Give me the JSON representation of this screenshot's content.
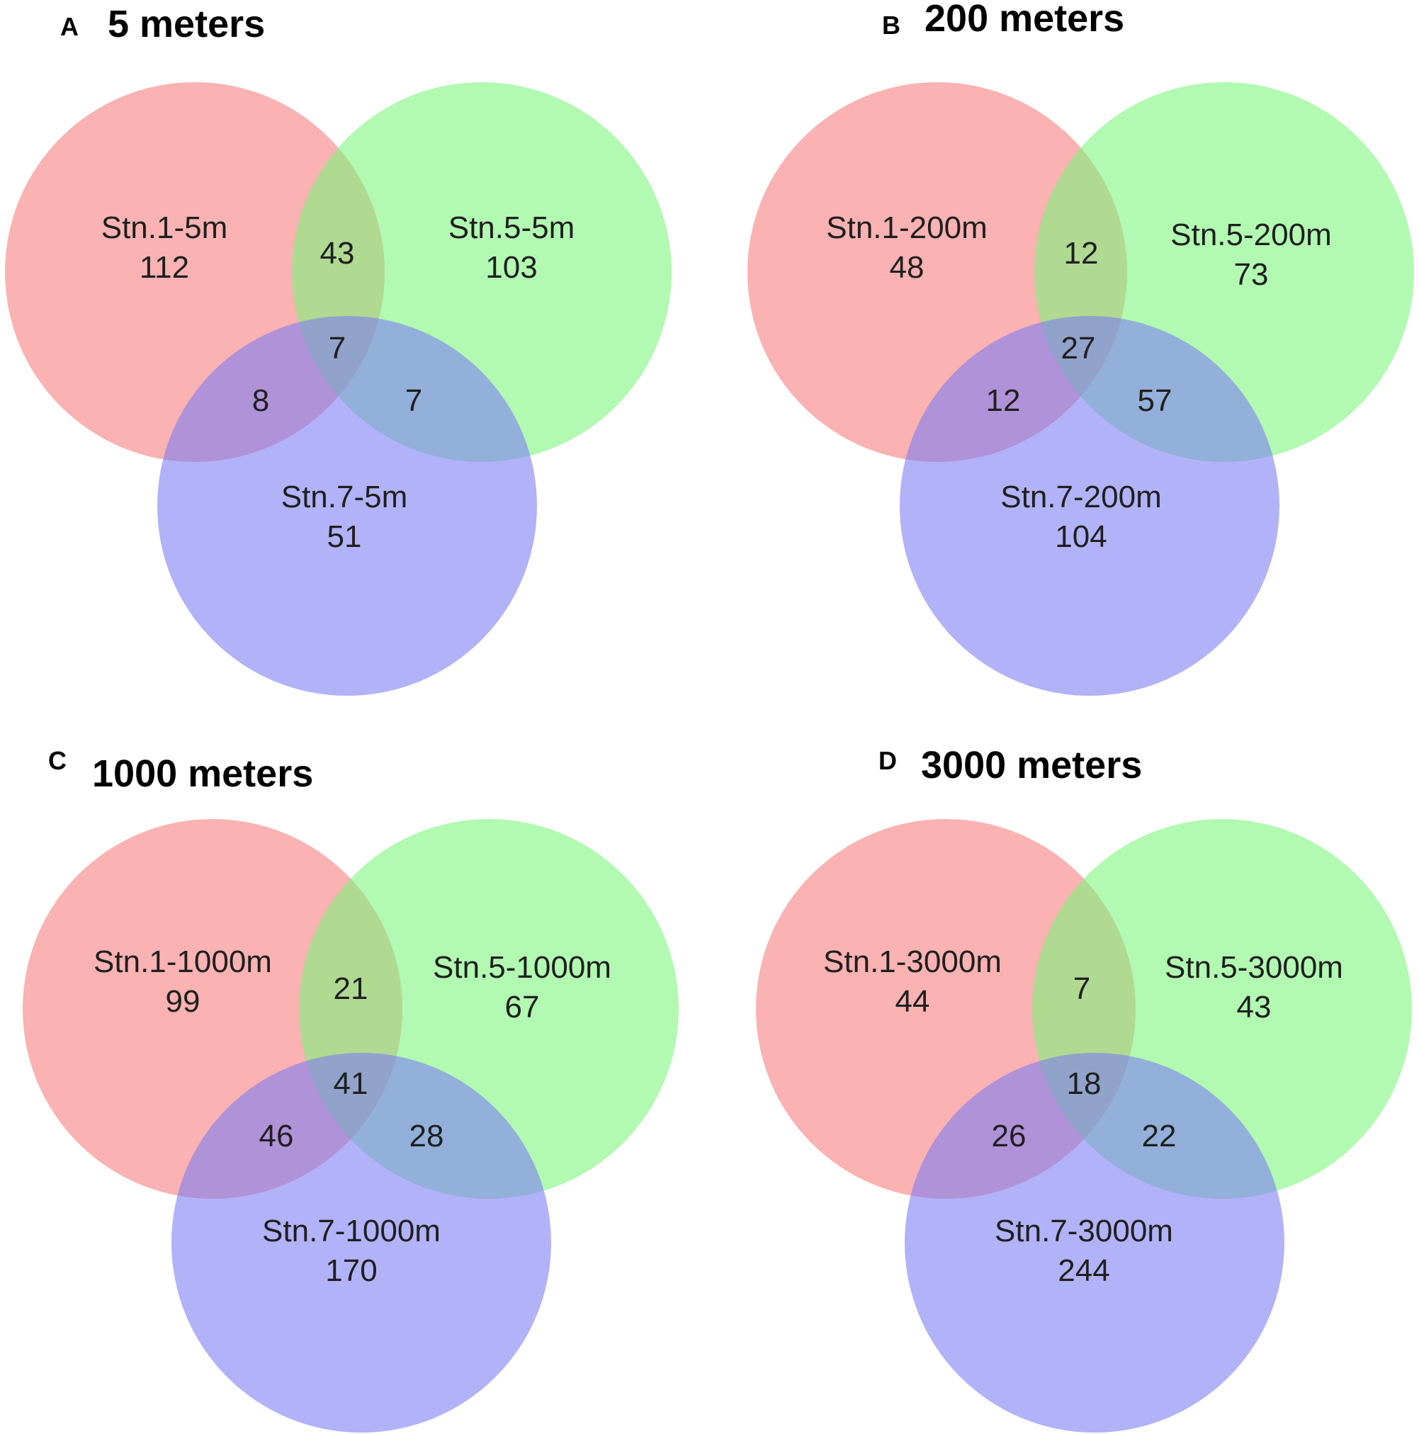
{
  "colors": {
    "station_1": "#f77a7a",
    "station_5": "#7af47a",
    "station_7": "#7a7af4"
  },
  "panels": [
    {
      "letter": "A",
      "title": "5 meters",
      "sets": {
        "s1": {
          "label": "Stn.1-5m",
          "only": "112"
        },
        "s5": {
          "label": "Stn.5-5m",
          "only": "103"
        },
        "s7": {
          "label": "Stn.7-5m",
          "only": "51"
        }
      },
      "overlaps": {
        "s1_s5": "43",
        "s1_s7": "8",
        "s5_s7": "7",
        "all": "7"
      }
    },
    {
      "letter": "B",
      "title": "200 meters",
      "sets": {
        "s1": {
          "label": "Stn.1-200m",
          "only": "48"
        },
        "s5": {
          "label": "Stn.5-200m",
          "only": "73"
        },
        "s7": {
          "label": "Stn.7-200m",
          "only": "104"
        }
      },
      "overlaps": {
        "s1_s5": "12",
        "s1_s7": "12",
        "s5_s7": "57",
        "all": "27"
      }
    },
    {
      "letter": "C",
      "title": "1000 meters",
      "sets": {
        "s1": {
          "label": "Stn.1-1000m",
          "only": "99"
        },
        "s5": {
          "label": "Stn.5-1000m",
          "only": "67"
        },
        "s7": {
          "label": "Stn.7-1000m",
          "only": "170"
        }
      },
      "overlaps": {
        "s1_s5": "21",
        "s1_s7": "46",
        "s5_s7": "28",
        "all": "41"
      }
    },
    {
      "letter": "D",
      "title": "3000 meters",
      "sets": {
        "s1": {
          "label": "Stn.1-3000m",
          "only": "44"
        },
        "s5": {
          "label": "Stn.5-3000m",
          "only": "43"
        },
        "s7": {
          "label": "Stn.7-3000m",
          "only": "244"
        }
      },
      "overlaps": {
        "s1_s5": "7",
        "s1_s7": "26",
        "s5_s7": "22",
        "all": "18"
      }
    }
  ]
}
